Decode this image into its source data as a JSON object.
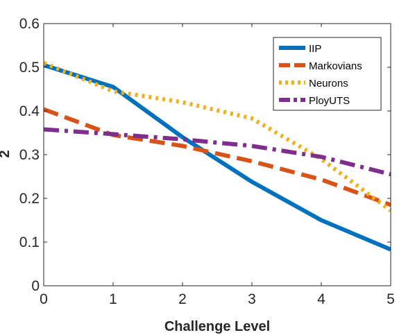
{
  "chart_data": {
    "type": "line",
    "title": "",
    "xlabel": "Challenge Level",
    "ylabel": "2",
    "xlim": [
      0,
      5
    ],
    "ylim": [
      0,
      0.6
    ],
    "xticks": [
      0,
      1,
      2,
      3,
      4,
      5
    ],
    "xtick_labels": [
      "0",
      "1",
      "2",
      "3",
      "4",
      "5"
    ],
    "yticks": [
      0,
      0.1,
      0.2,
      0.3,
      0.4,
      0.5,
      0.6
    ],
    "ytick_labels": [
      "0",
      "0.1",
      "0.2",
      "0.3",
      "0.4",
      "0.5",
      "0.6"
    ],
    "grid": false,
    "legend_position": "top-right",
    "x": [
      0,
      1,
      2,
      3,
      4,
      5
    ],
    "series": [
      {
        "name": "IIP",
        "values": [
          0.505,
          0.455,
          0.34,
          0.238,
          0.15,
          0.083
        ],
        "color": "#0072BD",
        "style": "solid"
      },
      {
        "name": "Markovians",
        "values": [
          0.404,
          0.345,
          0.32,
          0.285,
          0.243,
          0.185
        ],
        "color": "#D95319",
        "style": "dashed"
      },
      {
        "name": "Neurons",
        "values": [
          0.51,
          0.445,
          0.42,
          0.383,
          0.29,
          0.172
        ],
        "color": "#EDB120",
        "style": "dotted"
      },
      {
        "name": "PloyUTS",
        "values": [
          0.358,
          0.347,
          0.335,
          0.32,
          0.295,
          0.255
        ],
        "color": "#7E2F8E",
        "style": "dashdot"
      }
    ]
  }
}
